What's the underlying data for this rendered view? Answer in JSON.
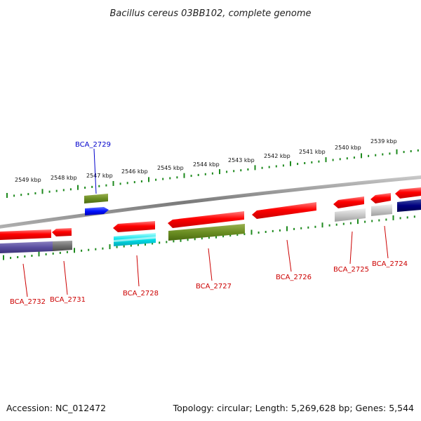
{
  "title": "Bacillus cereus 03BB102, complete genome",
  "footer": {
    "accession": "Accession: NC_012472",
    "summary": "Topology: circular; Length: 5,269,628 bp; Genes: 5,544"
  },
  "colors": {
    "backbone": "#8a8a8a",
    "ticks": "#1e8a1e",
    "label_default": "#cc0000",
    "label_highlight": "#0000cc"
  },
  "ruler": [
    {
      "label": "2549 kbp"
    },
    {
      "label": "2548 kbp"
    },
    {
      "label": "2547 kbp"
    },
    {
      "label": "2546 kbp"
    },
    {
      "label": "2545 kbp"
    },
    {
      "label": "2544 kbp"
    },
    {
      "label": "2543 kbp"
    },
    {
      "label": "2542 kbp"
    },
    {
      "label": "2541 kbp"
    },
    {
      "label": "2540 kbp"
    },
    {
      "label": "2539 kbp"
    }
  ],
  "gene_labels": [
    {
      "name": "BCA_2729",
      "color": "#0000cc"
    },
    {
      "name": "BCA_2732",
      "color": "#cc0000"
    },
    {
      "name": "BCA_2731",
      "color": "#cc0000"
    },
    {
      "name": "BCA_2728",
      "color": "#cc0000"
    },
    {
      "name": "BCA_2727",
      "color": "#cc0000"
    },
    {
      "name": "BCA_2726",
      "color": "#cc0000"
    },
    {
      "name": "BCA_2725",
      "color": "#cc0000"
    },
    {
      "name": "BCA_2724",
      "color": "#cc0000"
    }
  ]
}
